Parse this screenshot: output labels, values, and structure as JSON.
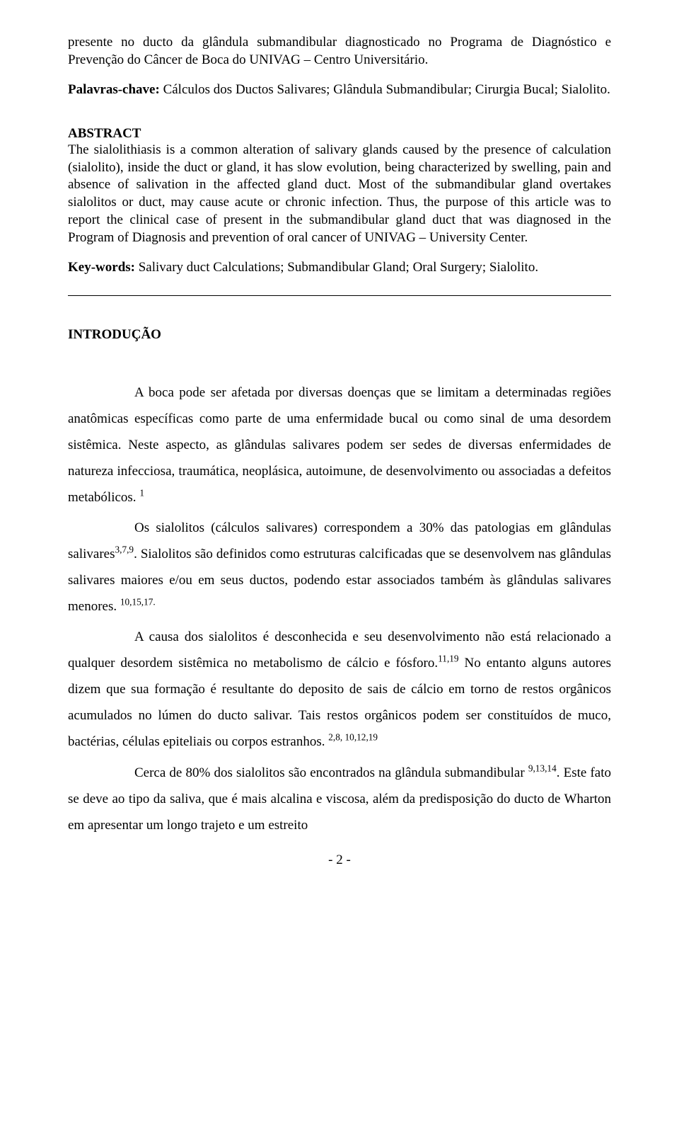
{
  "resumo_tail": "presente no ducto da glândula submandibular diagnosticado no Programa de Diagnóstico e Prevenção do Câncer de Boca do UNIVAG – Centro Universitário.",
  "palavras_chave_label": "Palavras-chave:",
  "palavras_chave_text": " Cálculos dos Ductos Salivares; Glândula Submandibular; Cirurgia Bucal; Sialolito.",
  "abstract_label": "ABSTRACT",
  "abstract_text": "The sialolithiasis is a common alteration of salivary glands caused by the presence of calculation (sialolito), inside the duct or gland, it has slow evolution, being characterized by swelling, pain and absence of salivation in the affected gland duct. Most of the submandibular gland overtakes sialolitos or duct, may cause acute or chronic infection. Thus, the purpose of this article was to report the clinical case of present in the submandibular gland duct that was diagnosed in the Program of Diagnosis and prevention of oral cancer of UNIVAG – University Center.",
  "keywords_label": "Key-words:",
  "keywords_text": " Salivary duct Calculations; Submandibular Gland; Oral Surgery; Sialolito.",
  "introducao_label": "INTRODUÇÃO",
  "p1_a": "A boca pode ser afetada por diversas doenças que se limitam a determinadas regiões anatômicas específicas como parte de uma enfermidade bucal ou como sinal de uma desordem sistêmica. Neste aspecto, as glândulas salivares podem ser sedes de diversas enfermidades de natureza infecciosa, traumática, neoplásica, autoimune, de desenvolvimento ou associadas a defeitos metabólicos. ",
  "p1_sup": "1",
  "p2_a": "Os sialolitos (cálculos salivares) correspondem a 30% das patologias em glândulas salivares",
  "p2_sup1": "3,7,9",
  "p2_b": ". Sialolitos são definidos como estruturas calcificadas que se desenvolvem nas glândulas salivares maiores e/ou em seus ductos, podendo estar associados também às glândulas salivares menores. ",
  "p2_sup2": "10,15,17.",
  "p3_a": "A causa dos sialolitos é desconhecida e seu desenvolvimento não está relacionado a qualquer desordem sistêmica no metabolismo de cálcio e fósforo.",
  "p3_sup1": "11,19",
  "p3_b": " No entanto alguns autores dizem que sua formação é resultante do deposito de sais de cálcio em torno de restos orgânicos acumulados no lúmen do ducto salivar. Tais restos orgânicos podem ser constituídos de muco, bactérias, células epiteliais ou corpos estranhos. ",
  "p3_sup2": "2,8, 10,12,19",
  "p4_a": "Cerca de 80% dos sialolitos são encontrados na glândula submandibular ",
  "p4_sup": "9,13,14",
  "p4_b": ". Este fato se deve ao tipo da saliva, que é mais alcalina e viscosa, além da predisposição do ducto de Wharton em apresentar um longo trajeto e um estreito",
  "page_number": "- 2 -"
}
